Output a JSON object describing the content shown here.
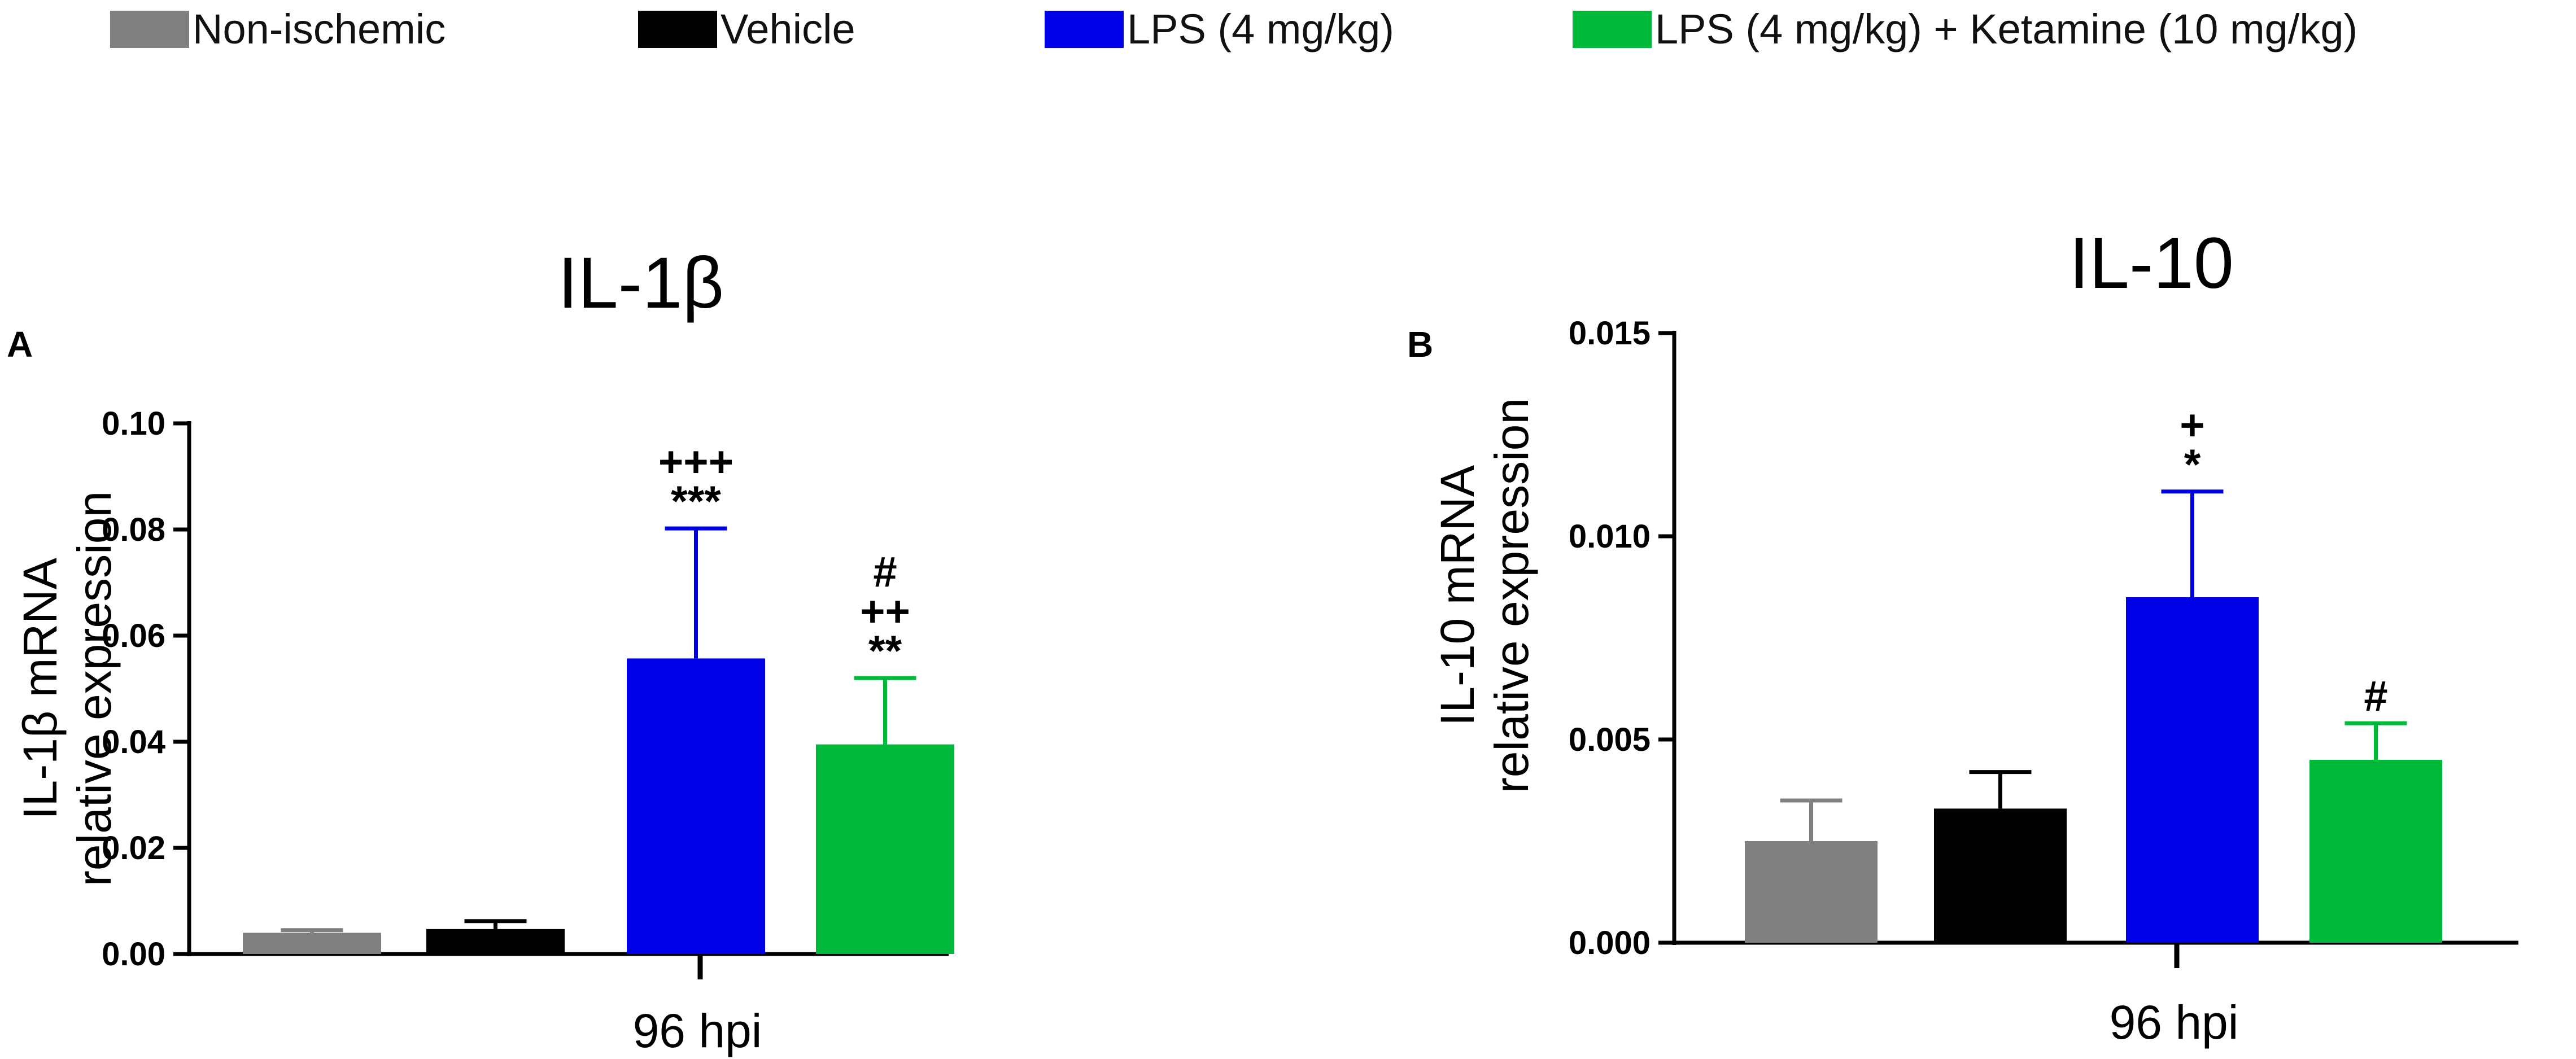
{
  "legend": [
    {
      "label": "Non-ischemic",
      "color": "#808080"
    },
    {
      "label": "Vehicle",
      "color": "#000000"
    },
    {
      "label": "LPS (4 mg/kg)",
      "color": "#0000e6"
    },
    {
      "label": "LPS (4 mg/kg) + Ketamine (10 mg/kg)",
      "color": "#00b83a"
    }
  ],
  "chart_data": [
    {
      "type": "bar",
      "panel_label": "A",
      "title": "IL-1β",
      "ylabel_line1": "IL-1β mRNA",
      "ylabel_line2": "relative expression",
      "xlabel": "96 hpi",
      "categories": [
        "Non-ischemic",
        "Vehicle",
        "LPS (4 mg/kg)",
        "LPS (4 mg/kg) + Ketamine (10 mg/kg)"
      ],
      "values": [
        0.004,
        0.0047,
        0.0557,
        0.0395
      ],
      "errors": [
        0.0005,
        0.0015,
        0.0245,
        0.0125
      ],
      "colors": [
        "#808080",
        "#000000",
        "#0000e6",
        "#00b83a"
      ],
      "annotations": [
        [],
        [],
        [
          "+++",
          "***"
        ],
        [
          "#",
          "++",
          "**"
        ]
      ],
      "ylim": [
        0,
        0.1
      ],
      "yticks": [
        0.0,
        0.02,
        0.04,
        0.06,
        0.08,
        0.1
      ],
      "ytick_labels": [
        "0.00",
        "0.02",
        "0.04",
        "0.06",
        "0.08",
        "0.10"
      ]
    },
    {
      "type": "bar",
      "panel_label": "B",
      "title": "IL-10",
      "ylabel_line1": "IL-10 mRNA",
      "ylabel_line2": "relative expression",
      "xlabel": "96 hpi",
      "categories": [
        "Non-ischemic",
        "Vehicle",
        "LPS (4 mg/kg)",
        "LPS (4 mg/kg) + Ketamine (10 mg/kg)"
      ],
      "values": [
        0.0025,
        0.0033,
        0.0085,
        0.0045
      ],
      "errors": [
        0.001,
        0.0009,
        0.0026,
        0.0009
      ],
      "colors": [
        "#808080",
        "#000000",
        "#0000e6",
        "#00b83a"
      ],
      "annotations": [
        [],
        [],
        [
          "+",
          "*"
        ],
        [
          "#"
        ]
      ],
      "ylim": [
        0,
        0.015
      ],
      "yticks": [
        0.0,
        0.005,
        0.01,
        0.015
      ],
      "ytick_labels": [
        "0.000",
        "0.005",
        "0.010",
        "0.015"
      ]
    }
  ]
}
